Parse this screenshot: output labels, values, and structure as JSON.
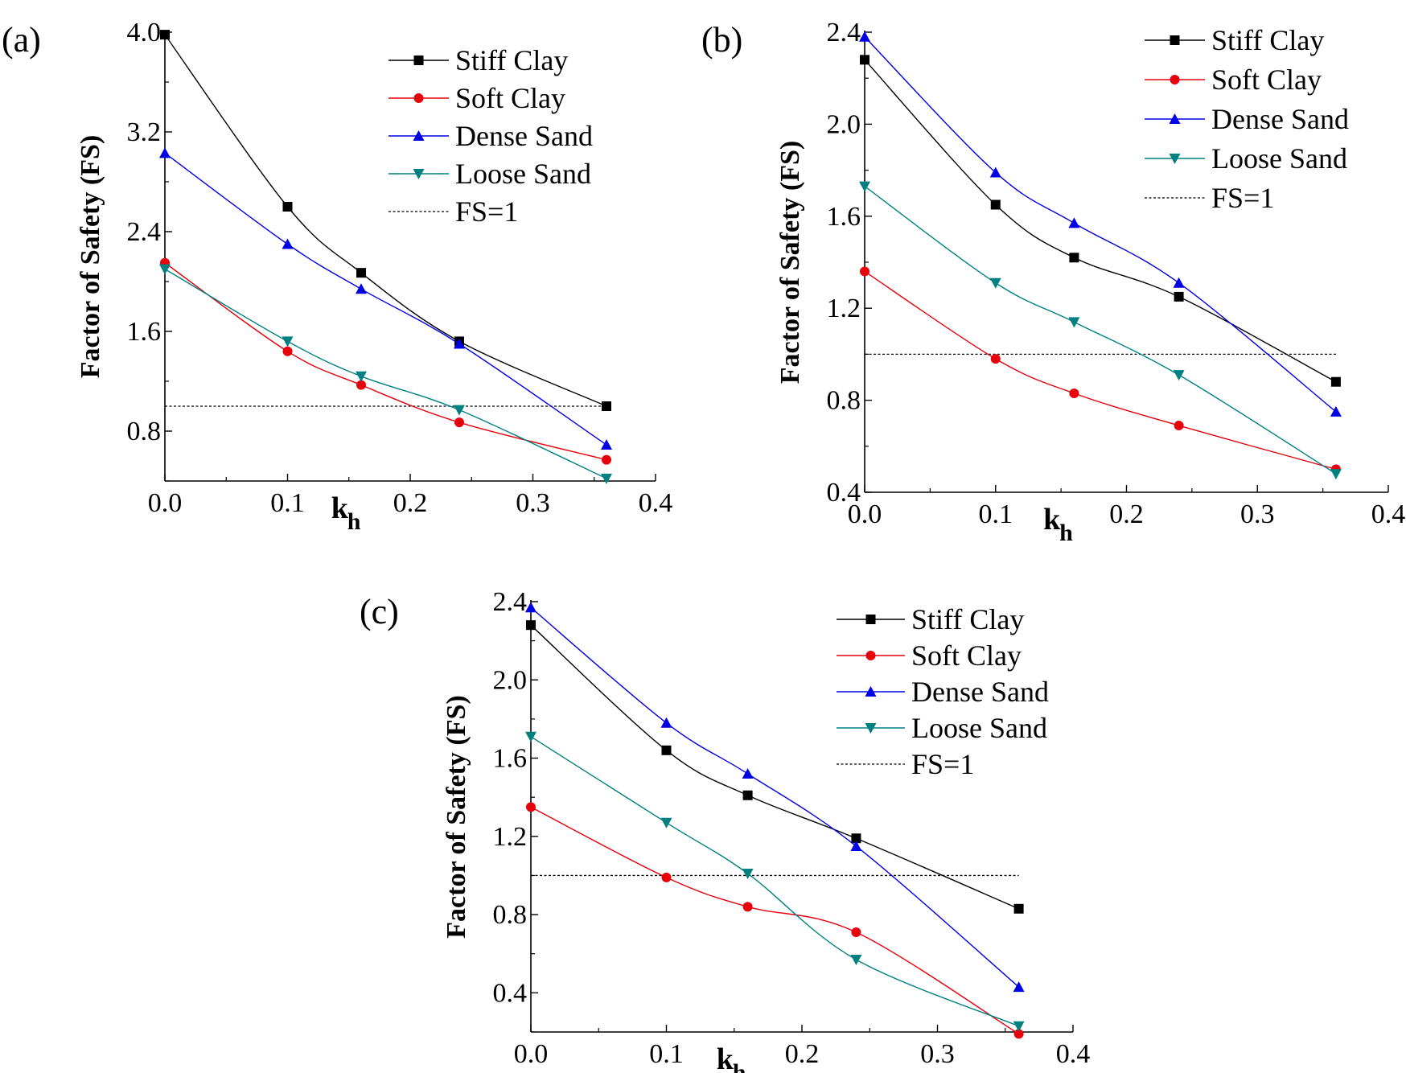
{
  "figure": {
    "colors": {
      "Stiff Clay": "#000000",
      "Soft Clay": "#e8000b",
      "Dense Sand": "#0000e6",
      "Loose Sand": "#008080",
      "FS=1": "#000000"
    },
    "markers": {
      "Stiff Clay": "square",
      "Soft Clay": "circle",
      "Dense Sand": "triangle-up",
      "Loose Sand": "triangle-down"
    }
  },
  "chart_data": [
    {
      "panel_label": "(a)",
      "type": "line",
      "xlabel": "k",
      "xlabel_sub": "h",
      "ylabel": "Factor of Safety (FS)",
      "xlim": [
        0,
        0.4
      ],
      "ylim": [
        0.4,
        4.0
      ],
      "xticks": [
        "0.0",
        "0.1",
        "0.2",
        "0.3",
        "0.4"
      ],
      "yticks": [
        "0.8",
        "1.6",
        "2.4",
        "3.2",
        "4.0"
      ],
      "grid": false,
      "legend_position": "top-right",
      "legend": [
        "Stiff Clay",
        "Soft Clay",
        "Dense Sand",
        "Loose Sand",
        "FS=1"
      ],
      "reference_line": {
        "name": "FS=1",
        "y": 1.0,
        "x": [
          0,
          0.36
        ]
      },
      "series": [
        {
          "name": "Stiff Clay",
          "x": [
            0,
            0.1,
            0.16,
            0.24,
            0.36
          ],
          "values": [
            3.98,
            2.6,
            2.07,
            1.52,
            1.0
          ]
        },
        {
          "name": "Soft Clay",
          "x": [
            0,
            0.1,
            0.16,
            0.24,
            0.36
          ],
          "values": [
            2.15,
            1.44,
            1.17,
            0.87,
            0.57
          ]
        },
        {
          "name": "Dense Sand",
          "x": [
            0,
            0.1,
            0.16,
            0.24,
            0.36
          ],
          "values": [
            3.03,
            2.3,
            1.94,
            1.5,
            0.69
          ]
        },
        {
          "name": "Loose Sand",
          "x": [
            0,
            0.1,
            0.16,
            0.24,
            0.36
          ],
          "values": [
            2.1,
            1.52,
            1.24,
            0.97,
            0.42
          ]
        }
      ]
    },
    {
      "panel_label": "(b)",
      "type": "line",
      "xlabel": "k",
      "xlabel_sub": "h",
      "ylabel": "Factor of Safety (FS)",
      "xlim": [
        0,
        0.4
      ],
      "ylim": [
        0.4,
        2.4
      ],
      "xticks": [
        "0.0",
        "0.1",
        "0.2",
        "0.3",
        "0.4"
      ],
      "yticks": [
        "0.4",
        "0.8",
        "1.2",
        "1.6",
        "2.0",
        "2.4"
      ],
      "grid": false,
      "legend_position": "top-right",
      "legend": [
        "Stiff Clay",
        "Soft Clay",
        "Dense Sand",
        "Loose Sand",
        "FS=1"
      ],
      "reference_line": {
        "name": "FS=1",
        "y": 1.0,
        "x": [
          0,
          0.36
        ]
      },
      "series": [
        {
          "name": "Stiff Clay",
          "x": [
            0,
            0.1,
            0.16,
            0.24,
            0.36
          ],
          "values": [
            2.28,
            1.65,
            1.42,
            1.25,
            0.88
          ]
        },
        {
          "name": "Soft Clay",
          "x": [
            0,
            0.1,
            0.16,
            0.24,
            0.36
          ],
          "values": [
            1.36,
            0.98,
            0.83,
            0.69,
            0.5
          ]
        },
        {
          "name": "Dense Sand",
          "x": [
            0,
            0.1,
            0.16,
            0.24,
            0.36
          ],
          "values": [
            2.38,
            1.79,
            1.57,
            1.31,
            0.75
          ]
        },
        {
          "name": "Loose Sand",
          "x": [
            0,
            0.1,
            0.16,
            0.24,
            0.36
          ],
          "values": [
            1.73,
            1.31,
            1.14,
            0.91,
            0.48
          ]
        }
      ]
    },
    {
      "panel_label": "(c)",
      "type": "line",
      "xlabel": "k",
      "xlabel_sub": "h",
      "ylabel": "Factor of Safety (FS)",
      "xlim": [
        0,
        0.4
      ],
      "ylim": [
        0.2,
        2.4
      ],
      "xticks": [
        "0.0",
        "0.1",
        "0.2",
        "0.3",
        "0.4"
      ],
      "yticks": [
        "0.4",
        "0.8",
        "1.2",
        "1.6",
        "2.0",
        "2.4"
      ],
      "grid": false,
      "legend_position": "top-right",
      "legend": [
        "Stiff Clay",
        "Soft Clay",
        "Dense Sand",
        "Loose Sand",
        "FS=1"
      ],
      "reference_line": {
        "name": "FS=1",
        "y": 1.0,
        "x": [
          0,
          0.36
        ]
      },
      "series": [
        {
          "name": "Stiff Clay",
          "x": [
            0,
            0.1,
            0.16,
            0.24,
            0.36
          ],
          "values": [
            2.28,
            1.64,
            1.41,
            1.19,
            0.83
          ]
        },
        {
          "name": "Soft Clay",
          "x": [
            0,
            0.1,
            0.16,
            0.24,
            0.36
          ],
          "values": [
            1.35,
            0.99,
            0.84,
            0.71,
            0.19
          ]
        },
        {
          "name": "Dense Sand",
          "x": [
            0,
            0.1,
            0.16,
            0.24,
            0.36
          ],
          "values": [
            2.37,
            1.78,
            1.52,
            1.15,
            0.43
          ]
        },
        {
          "name": "Loose Sand",
          "x": [
            0,
            0.1,
            0.16,
            0.24,
            0.36
          ],
          "values": [
            1.71,
            1.27,
            1.01,
            0.57,
            0.23
          ]
        }
      ]
    }
  ]
}
